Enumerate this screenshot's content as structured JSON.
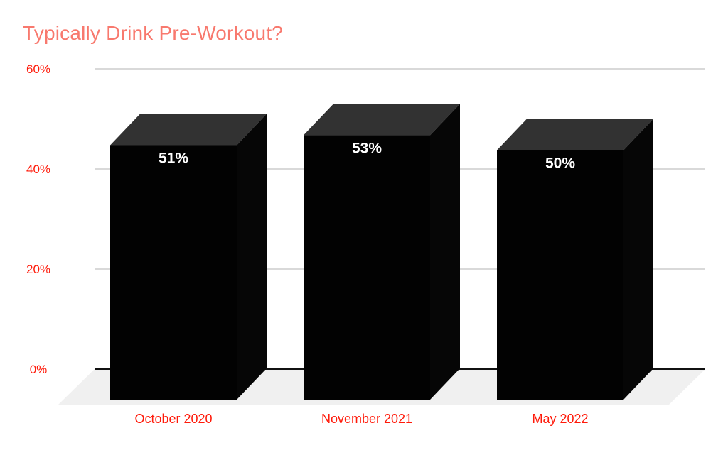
{
  "chart_data": {
    "type": "bar",
    "variant": "3d-column",
    "title": "Typically Drink Pre-Workout?",
    "categories": [
      "October 2020",
      "November 2021",
      "May 2022"
    ],
    "series": [
      {
        "name": "Typically Drink Pre-Workout?",
        "values": [
          51,
          53,
          50
        ],
        "data_labels": [
          "51%",
          "53%",
          "50%"
        ]
      }
    ],
    "xlabel": "",
    "ylabel": "",
    "ylim": [
      0,
      60
    ],
    "yticks": [
      {
        "value": 0,
        "label": "0%"
      },
      {
        "value": 20,
        "label": "20%"
      },
      {
        "value": 40,
        "label": "40%"
      },
      {
        "value": 60,
        "label": "60%"
      }
    ],
    "grid": true,
    "legend": "none",
    "colors": {
      "title": "#F8796E",
      "axis_labels": "#FF1A0A",
      "bar_front": "#020202",
      "bar_top": "#323232",
      "bar_side": "#060606",
      "data_label": "#FFFFFF",
      "gridline": "#D9D9D9",
      "zero_line": "#111111",
      "floor": "#F0F0F0",
      "background": "#FFFFFF"
    }
  }
}
